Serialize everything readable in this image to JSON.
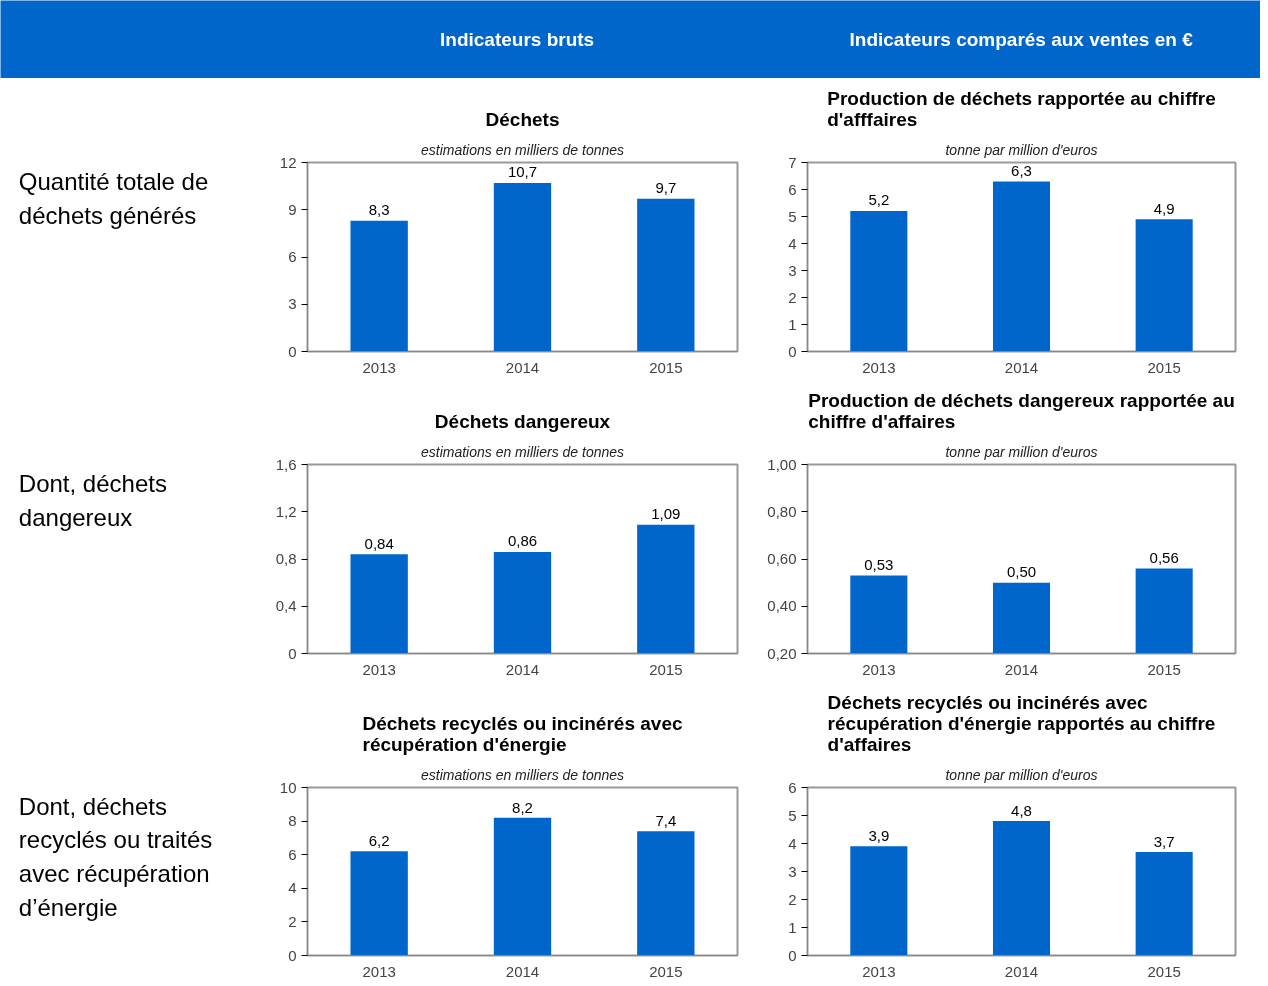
{
  "chart_data": [
    {
      "type": "other",
      "color": "#0066cc",
      "annotations": [
        "Indicateurs bruts",
        "Indicateurs comparés aux ventes en €"
      ]
    },
    {
      "type": "other",
      "annotations": [
        "Quantité totale de déchets générés"
      ]
    },
    {
      "type": "bar",
      "title": "Déchets",
      "subtitle": "estimations en milliers de tonnes",
      "categories": [
        "2013",
        "2014",
        "2015"
      ],
      "values": [
        8.3,
        10.7,
        9.7
      ],
      "value_labels": [
        "8,3",
        "10,7",
        "9,7"
      ],
      "color": "#0066cc",
      "ylim": [
        0,
        12
      ],
      "yticks": [
        0,
        3,
        6,
        9,
        12
      ]
    },
    {
      "type": "bar",
      "title": "Production de déchets rapportée au chiffre d'afffaires",
      "subtitle": "tonne par million d'euros",
      "categories": [
        "2013",
        "2014",
        "2015"
      ],
      "values": [
        5.2,
        6.3,
        4.9
      ],
      "value_labels": [
        "5,2",
        "6,3",
        "4,9"
      ],
      "color": "#0066cc",
      "ylim": [
        0,
        7
      ],
      "yticks": [
        0,
        1,
        2,
        3,
        4,
        5,
        6,
        7
      ]
    },
    {
      "type": "other",
      "annotations": [
        "Dont, déchets dangereux"
      ]
    },
    {
      "type": "bar",
      "title": "Déchets dangereux",
      "subtitle": "estimations en milliers de tonnes",
      "categories": [
        "2013",
        "2014",
        "2015"
      ],
      "values": [
        0.84,
        0.86,
        1.09
      ],
      "value_labels": [
        "0,84",
        "0,86",
        "1,09"
      ],
      "color": "#0066cc",
      "ylim": [
        0,
        1.6
      ],
      "yticks": [
        0,
        {
          "value": 0.4,
          "label": "0,4"
        },
        {
          "value": 0.8,
          "label": "0,8"
        },
        {
          "value": 1.2,
          "label": "1,2"
        },
        {
          "value": 1.6,
          "label": "1,6"
        }
      ]
    },
    {
      "type": "bar",
      "title": "Production de déchets dangereux rapportée au chiffre d'affaires",
      "subtitle": "tonne par million d'euros",
      "categories": [
        "2013",
        "2014",
        "2015"
      ],
      "values": [
        0.53,
        0.5,
        0.56
      ],
      "value_labels": [
        "0,53",
        "0,50",
        "0,56"
      ],
      "color": "#0066cc",
      "ylim": [
        0.2,
        1.0
      ],
      "yticks": [
        {
          "value": 0.2,
          "label": "0,20"
        },
        {
          "value": 0.4,
          "label": "0,40"
        },
        {
          "value": 0.6,
          "label": "0,60"
        },
        {
          "value": 0.8,
          "label": "0,80"
        },
        {
          "value": 1.0,
          "label": "1,00"
        }
      ]
    },
    {
      "type": "other",
      "annotations": [
        "Dont, déchets recyclés ou traités avec récupération d’énergie"
      ]
    },
    {
      "type": "bar",
      "title": "Déchets recyclés ou incinérés avec récupération d'énergie",
      "subtitle": "estimations en milliers de tonnes",
      "categories": [
        "2013",
        "2014",
        "2015"
      ],
      "values": [
        6.2,
        8.2,
        7.4
      ],
      "value_labels": [
        "6,2",
        "8,2",
        "7,4"
      ],
      "color": "#0066cc",
      "ylim": [
        0,
        10
      ],
      "yticks": [
        0,
        2,
        4,
        6,
        8,
        10
      ]
    },
    {
      "type": "bar",
      "title": "Déchets recyclés ou incinérés avec récupération d'énergie rapportés au chiffre d'affaires",
      "subtitle": "tonne par million d'euros",
      "categories": [
        "2013",
        "2014",
        "2015"
      ],
      "values": [
        3.9,
        4.8,
        3.7
      ],
      "value_labels": [
        "3,9",
        "4,8",
        "3,7"
      ],
      "color": "#0066cc",
      "ylim": [
        0,
        6
      ],
      "yticks": [
        0,
        1,
        2,
        3,
        4,
        5,
        6
      ]
    }
  ]
}
